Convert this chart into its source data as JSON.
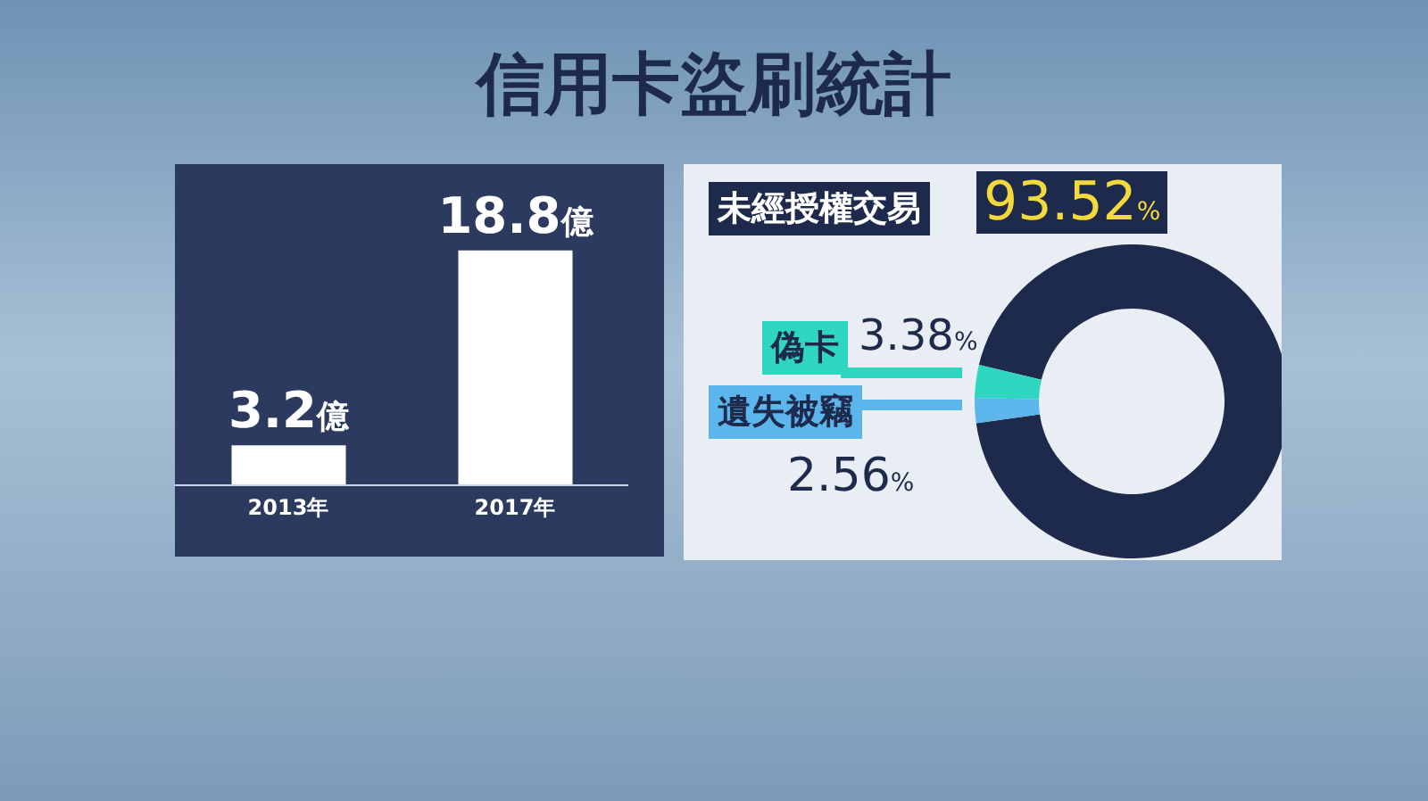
{
  "chart_data": [
    {
      "type": "bar",
      "title": "信用卡盜刷統計",
      "categories": [
        "2013年",
        "2017年"
      ],
      "values": [
        3.2,
        18.8
      ],
      "value_labels": [
        "3.2億",
        "18.8億"
      ],
      "color": "#ffffff"
    },
    {
      "type": "donut",
      "categories": [
        "未經授權交易",
        "偽卡",
        "遺失被竊"
      ],
      "values": [
        93.52,
        3.38,
        2.56
      ],
      "colors": [
        "#1e2a4c",
        "#2fd6c0",
        "#5cb6ec"
      ],
      "value_labels": [
        "93.52%",
        "3.38%",
        "2.56%"
      ]
    }
  ]
}
